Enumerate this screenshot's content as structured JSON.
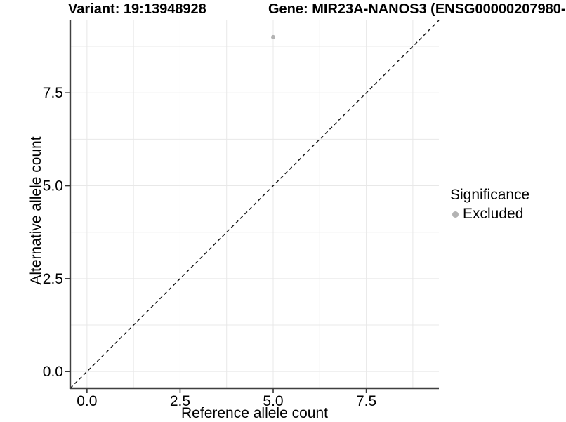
{
  "titles": {
    "left": "Variant: 19:13948928",
    "right": "Gene: MIR23A-NANOS3 (ENSG00000207980-"
  },
  "legend": {
    "title": "Significance",
    "items": [
      {
        "label": "Excluded",
        "color": "#b3b3b3",
        "marker": "dot"
      }
    ]
  },
  "chart_data": {
    "type": "scatter",
    "title_left": "Variant: 19:13948928",
    "title_right": "Gene: MIR23A-NANOS3 (ENSG00000207980-",
    "xlabel": "Reference allele count",
    "ylabel": "Alternative allele count",
    "xlim": [
      -0.45,
      9.45
    ],
    "ylim": [
      -0.45,
      9.45
    ],
    "x_ticks": [
      0,
      2.5,
      5,
      7.5
    ],
    "y_ticks": [
      0,
      2.5,
      5,
      7.5
    ],
    "x_tick_labels": [
      "0.0",
      "2.5",
      "5.0",
      "7.5"
    ],
    "y_tick_labels": [
      "0.0",
      "2.5",
      "5.0",
      "7.5"
    ],
    "minor_ticks": [
      1.25,
      3.75,
      6.25,
      8.75
    ],
    "grid": true,
    "legend_position": "right",
    "series": [
      {
        "name": "Excluded",
        "color": "#b3b3b3",
        "points": [
          {
            "x": 5,
            "y": 9
          }
        ]
      }
    ],
    "reference_line": {
      "style": "dashed",
      "slope": 1,
      "intercept": 0,
      "color": "#111111"
    }
  },
  "colors": {
    "grid": "#e8e8e8",
    "axis_line": "#404040",
    "tick": "#333333",
    "text": "#000000",
    "point": "#b3b3b3"
  }
}
